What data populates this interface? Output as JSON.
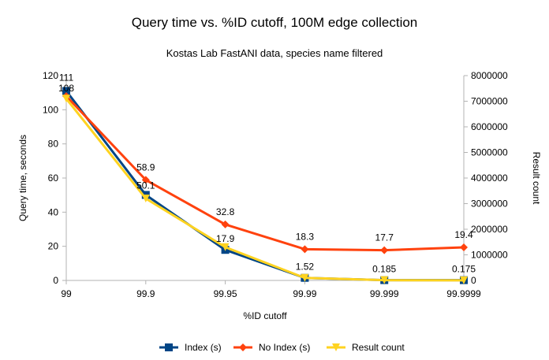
{
  "chart_data": {
    "type": "line",
    "title": "Query time vs. %ID cutoff, 100M edge collection",
    "subtitle": "Kostas Lab FastANI data, species name filtered",
    "xlabel": "%ID cutoff",
    "ylabel": "Query time, seconds",
    "y2label": "Result count",
    "categories": [
      "99",
      "99.9",
      "99.95",
      "99.99",
      "99.999",
      "99.9999"
    ],
    "ylim": [
      0,
      120
    ],
    "yticks": [
      0,
      20,
      40,
      60,
      80,
      100,
      120
    ],
    "y2lim": [
      0,
      8000000
    ],
    "y2ticks": [
      0,
      1000000,
      2000000,
      3000000,
      4000000,
      5000000,
      6000000,
      7000000,
      8000000
    ],
    "grid": false,
    "legend_position": "bottom",
    "series": [
      {
        "name": "Index (s)",
        "axis": "left",
        "color": "#004586",
        "marker": "square",
        "values": [
          111,
          50.1,
          17.9,
          1.52,
          0.185,
          0.175
        ],
        "labels": [
          "111",
          "50.1",
          "17.9",
          "1.52",
          "0.185",
          "0.175"
        ]
      },
      {
        "name": "No Index (s)",
        "axis": "left",
        "color": "#ff420e",
        "marker": "diamond",
        "values": [
          108,
          58.9,
          32.8,
          18.3,
          17.7,
          19.4
        ],
        "labels": [
          "108",
          "58.9",
          "32.8",
          "18.3",
          "17.7",
          "19.4"
        ]
      },
      {
        "name": "Result count",
        "axis": "right",
        "color": "#ffd320",
        "marker": "triangle-down",
        "values": [
          7100000,
          3200000,
          1300000,
          100000,
          10000,
          5000
        ],
        "labels": []
      }
    ]
  }
}
